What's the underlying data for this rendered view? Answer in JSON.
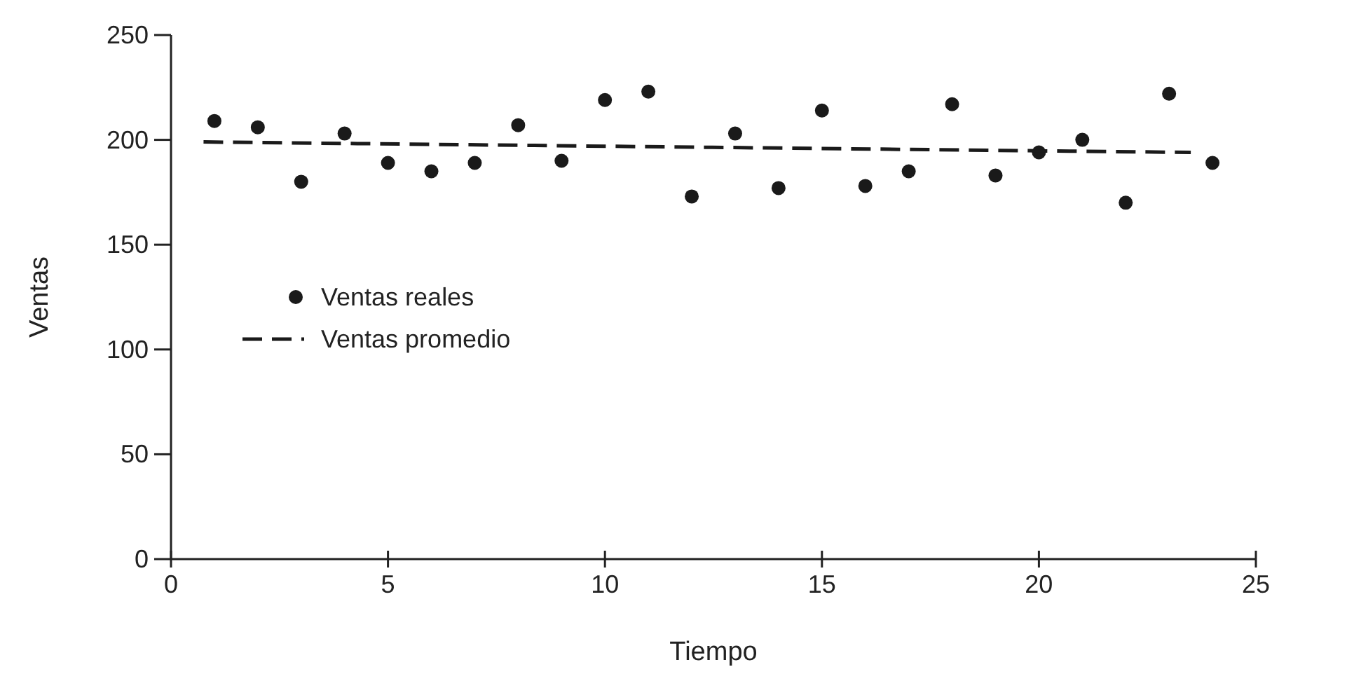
{
  "chart_data": {
    "type": "scatter",
    "xlabel": "Tiempo",
    "ylabel": "Ventas",
    "xlim": [
      0,
      25
    ],
    "xticks": [
      0,
      5,
      10,
      15,
      20,
      25
    ],
    "ylim": [
      0,
      250
    ],
    "yticks": [
      0,
      50,
      100,
      150,
      200,
      250
    ],
    "grid": false,
    "legend": "left",
    "series": [
      {
        "name": "Ventas reales",
        "type": "scatter",
        "marker": "circle",
        "color": "#1a1a1a",
        "x": [
          1,
          2,
          3,
          4,
          5,
          6,
          7,
          8,
          9,
          10,
          11,
          12,
          13,
          14,
          15,
          16,
          17,
          18,
          19,
          20,
          21,
          22,
          23,
          24
        ],
        "values": [
          209,
          206,
          180,
          203,
          189,
          185,
          189,
          207,
          190,
          219,
          223,
          173,
          203,
          177,
          214,
          178,
          185,
          217,
          183,
          194,
          200,
          170,
          222,
          189
        ]
      },
      {
        "name": "Ventas promedio",
        "type": "line",
        "line_style": "dashed",
        "marker": "none",
        "color": "#1a1a1a",
        "x": [
          0.75,
          23.5
        ],
        "values": [
          199,
          194
        ]
      }
    ]
  }
}
